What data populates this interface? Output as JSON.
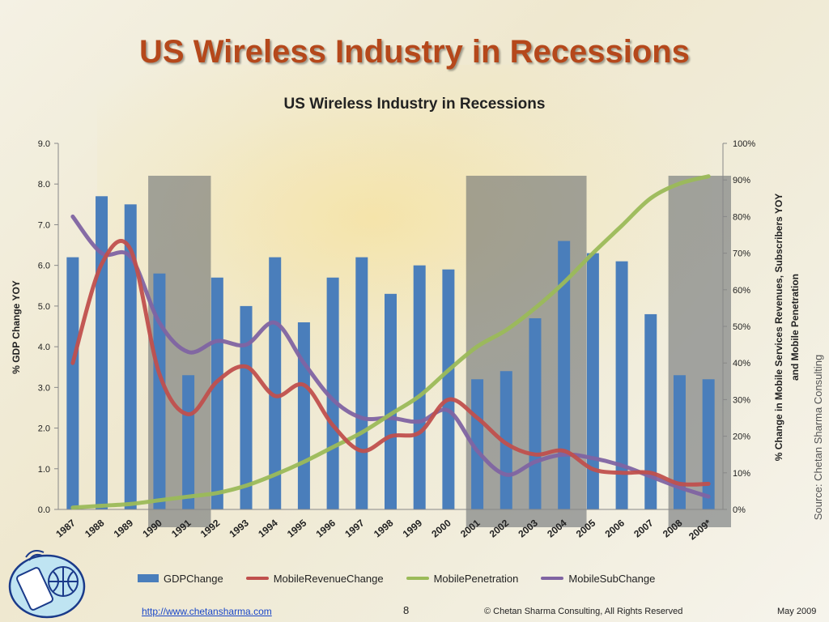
{
  "slide": {
    "title": "US Wireless Industry in Recessions",
    "source": "Source: Chetan Sharma Consulting",
    "footer": {
      "link": "http://www.chetansharma.com",
      "page": "8",
      "copyright": "© Chetan Sharma Consulting, All Rights Reserved",
      "date": "May 2009"
    }
  },
  "chart_data": {
    "type": "bar",
    "title": "US Wireless Industry in Recessions",
    "ylabel": "% GDP Change YOY",
    "y2label_line1": "% Change in Mobile Services Revenues, Subscribers YOY",
    "y2label_line2": "and Mobile Penetration",
    "ylim": [
      0,
      9
    ],
    "y2lim": [
      0,
      100
    ],
    "yticks": [
      "0.0",
      "1.0",
      "2.0",
      "3.0",
      "4.0",
      "5.0",
      "6.0",
      "7.0",
      "8.0",
      "9.0"
    ],
    "y2ticks": [
      "0%",
      "10%",
      "20%",
      "30%",
      "40%",
      "50%",
      "60%",
      "70%",
      "80%",
      "90%",
      "100%"
    ],
    "categories": [
      "1987",
      "1988",
      "1989",
      "1990",
      "1991",
      "1992",
      "1993",
      "1994",
      "1995",
      "1996",
      "1997",
      "1998",
      "1999",
      "2000",
      "2001",
      "2002",
      "2003",
      "2004",
      "2005",
      "2006",
      "2007",
      "2008",
      "2009*"
    ],
    "grid": false,
    "legend_position": "bottom",
    "recession_shading": [
      [
        "1990",
        "1991"
      ],
      [
        "2001",
        "2004"
      ],
      [
        "2008",
        "2009*"
      ]
    ],
    "series": [
      {
        "name": "GDPChange",
        "kind": "bar",
        "axis": "left",
        "color": "#4a7ebb",
        "values": [
          6.2,
          7.7,
          7.5,
          5.8,
          3.3,
          5.7,
          5.0,
          6.2,
          4.6,
          5.7,
          6.2,
          5.3,
          6.0,
          5.9,
          3.2,
          3.4,
          4.7,
          6.6,
          6.3,
          6.1,
          4.8,
          3.3,
          3.2
        ]
      },
      {
        "name": "MobileRevenueChange",
        "kind": "line",
        "axis": "right",
        "color": "#c0504d",
        "values": [
          40,
          67,
          71,
          37,
          26,
          35,
          39,
          31,
          34,
          23,
          16,
          20,
          21,
          30,
          25,
          18,
          15,
          16,
          11,
          10,
          10,
          7,
          7
        ]
      },
      {
        "name": "MobilePenetration",
        "kind": "line",
        "axis": "right",
        "color": "#9bbb59",
        "values": [
          0.5,
          1,
          1.5,
          2.5,
          3.5,
          4.5,
          6.5,
          9.5,
          13,
          17,
          21,
          26,
          31,
          38,
          44.5,
          49,
          55,
          62,
          70,
          77.5,
          85,
          89,
          91
        ]
      },
      {
        "name": "MobileSubChange",
        "kind": "line",
        "axis": "right",
        "color": "#8064a2",
        "values": [
          80,
          70,
          69,
          51,
          43,
          46,
          45,
          51,
          40,
          30,
          25,
          25,
          24,
          27,
          16,
          9.5,
          13,
          15,
          14,
          12,
          9,
          6,
          3.5
        ]
      }
    ]
  }
}
